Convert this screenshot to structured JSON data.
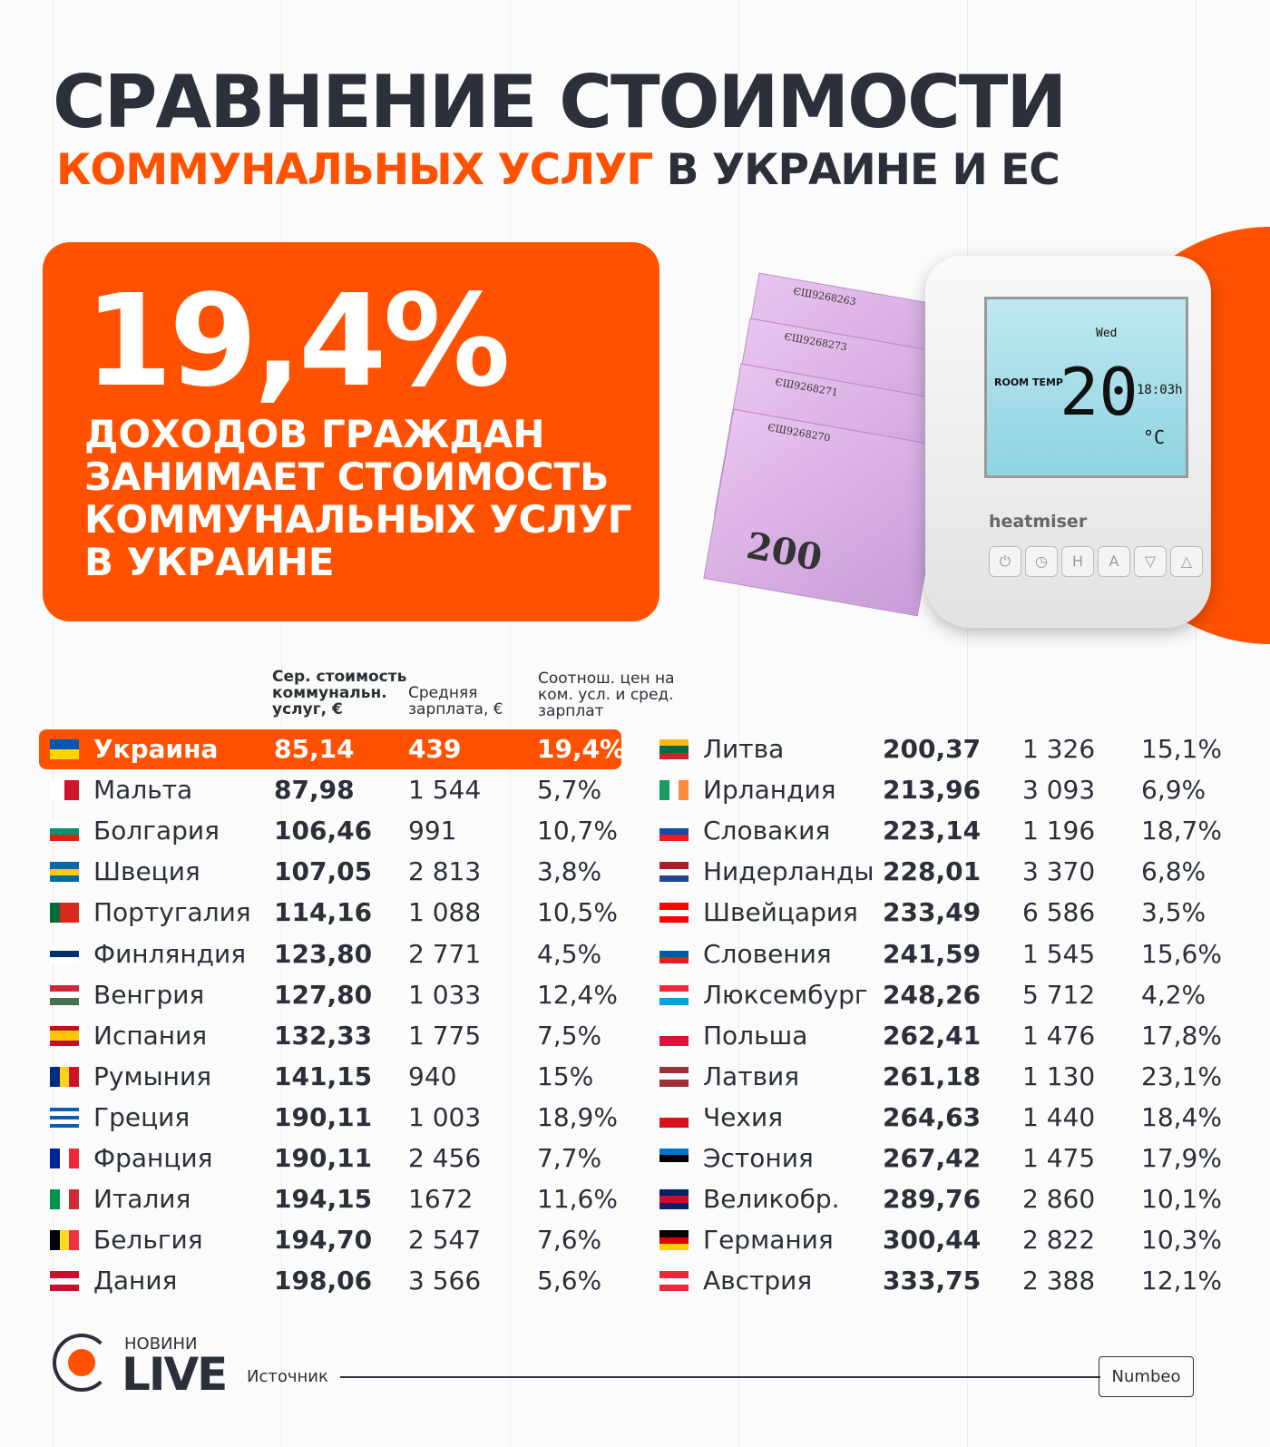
{
  "title": {
    "line1": "СРАВНЕНИЕ СТОИМОСТИ",
    "line2_accent": "КОММУНАЛЬНЫХ УСЛУГ",
    "line2_rest": " В УКРАИНЕ И ЕС"
  },
  "highlight": {
    "value": "19,4%",
    "text": "ДОХОДОВ ГРАЖДАН ЗАНИМАЕТ СТОИМОСТЬ КОММУНАЛЬНЫХ УСЛУГ В УКРАИНЕ"
  },
  "image": {
    "banknote_value": "200",
    "serials": [
      "ЄШ9268263",
      "ЄШ9268273",
      "ЄШ9268271",
      "ЄШ9268270"
    ],
    "thermostat": {
      "day": "Wed",
      "label": "ROOM TEMP",
      "temp": "20",
      "time": "18:03h",
      "unit": "°C",
      "brand": "heatmiser"
    }
  },
  "colors": {
    "accent": "#ff5100",
    "dark": "#2b303b"
  },
  "table": {
    "headers": {
      "cost": "Сер. стоимость коммунальн. услуг, €",
      "salary": "Средняя зарплата, €",
      "ratio": "Соотнош. цен на ком. усл. и сред. зарплат"
    },
    "left": [
      {
        "country": "Украина",
        "cost": "85,14",
        "salary": "439",
        "ratio": "19,4%",
        "flag": {
          "dir": "h",
          "colors": [
            "#0057b7",
            "#ffd700"
          ]
        }
      },
      {
        "country": "Мальта",
        "cost": "87,98",
        "salary": "1 544",
        "ratio": "5,7%",
        "flag": {
          "dir": "v",
          "colors": [
            "#ffffff",
            "#cf142b"
          ]
        }
      },
      {
        "country": "Болгария",
        "cost": "106,46",
        "salary": "991",
        "ratio": "10,7%",
        "flag": {
          "dir": "h",
          "colors": [
            "#ffffff",
            "#00966e",
            "#d62612"
          ]
        }
      },
      {
        "country": "Швеция",
        "cost": "107,05",
        "salary": "2 813",
        "ratio": "3,8%",
        "flag": {
          "dir": "h",
          "colors": [
            "#006aa7",
            "#fecc00",
            "#006aa7"
          ]
        }
      },
      {
        "country": "Португалия",
        "cost": "114,16",
        "salary": "1 088",
        "ratio": "10,5%",
        "flag": {
          "dir": "v",
          "colors": [
            "#046a38",
            "#da291c",
            "#da291c"
          ]
        }
      },
      {
        "country": "Финляндия",
        "cost": "123,80",
        "salary": "2 771",
        "ratio": "4,5%",
        "flag": {
          "dir": "h",
          "colors": [
            "#ffffff",
            "#002f6c",
            "#ffffff"
          ]
        }
      },
      {
        "country": "Венгрия",
        "cost": "127,80",
        "salary": "1 033",
        "ratio": "12,4%",
        "flag": {
          "dir": "h",
          "colors": [
            "#ce2939",
            "#ffffff",
            "#477050"
          ]
        }
      },
      {
        "country": "Испания",
        "cost": "132,33",
        "salary": "1 775",
        "ratio": "7,5%",
        "flag": {
          "dir": "h",
          "colors": [
            "#c60b1e",
            "#ffc400",
            "#ffc400",
            "#c60b1e"
          ]
        }
      },
      {
        "country": "Румыния",
        "cost": "141,15",
        "salary": "940",
        "ratio": "15%",
        "flag": {
          "dir": "v",
          "colors": [
            "#002b7f",
            "#fcd116",
            "#ce1126"
          ]
        }
      },
      {
        "country": "Греция",
        "cost": "190,11",
        "salary": "1 003",
        "ratio": "18,9%",
        "flag": {
          "dir": "h",
          "colors": [
            "#0d5eaf",
            "#ffffff",
            "#0d5eaf",
            "#ffffff",
            "#0d5eaf"
          ]
        }
      },
      {
        "country": "Франция",
        "cost": "190,11",
        "salary": "2 456",
        "ratio": "7,7%",
        "flag": {
          "dir": "v",
          "colors": [
            "#002395",
            "#ffffff",
            "#ed2939"
          ]
        }
      },
      {
        "country": "Италия",
        "cost": "194,15",
        "salary": "1672",
        "ratio": "11,6%",
        "flag": {
          "dir": "v",
          "colors": [
            "#009246",
            "#ffffff",
            "#ce2b37"
          ]
        }
      },
      {
        "country": "Бельгия",
        "cost": "194,70",
        "salary": "2 547",
        "ratio": "7,6%",
        "flag": {
          "dir": "v",
          "colors": [
            "#000000",
            "#fdda24",
            "#ef3340"
          ]
        }
      },
      {
        "country": "Дания",
        "cost": "198,06",
        "salary": "3 566",
        "ratio": "5,6%",
        "flag": {
          "dir": "h",
          "colors": [
            "#c8102e",
            "#ffffff",
            "#c8102e"
          ]
        }
      }
    ],
    "right": [
      {
        "country": "Литва",
        "cost": "200,37",
        "salary": "1 326",
        "ratio": "15,1%",
        "flag": {
          "dir": "h",
          "colors": [
            "#fdb913",
            "#006a44",
            "#c1272d"
          ]
        }
      },
      {
        "country": "Ирландия",
        "cost": "213,96",
        "salary": "3 093",
        "ratio": "6,9%",
        "flag": {
          "dir": "v",
          "colors": [
            "#169b62",
            "#ffffff",
            "#ff883e"
          ]
        }
      },
      {
        "country": "Словакия",
        "cost": "223,14",
        "salary": "1 196",
        "ratio": "18,7%",
        "flag": {
          "dir": "h",
          "colors": [
            "#ffffff",
            "#0b4ea2",
            "#ee1c25"
          ]
        }
      },
      {
        "country": "Нидерланды",
        "cost": "228,01",
        "salary": "3 370",
        "ratio": "6,8%",
        "flag": {
          "dir": "h",
          "colors": [
            "#ae1c28",
            "#ffffff",
            "#21468b"
          ]
        }
      },
      {
        "country": "Швейцария",
        "cost": "233,49",
        "salary": "6 586",
        "ratio": "3,5%",
        "flag": {
          "dir": "h",
          "colors": [
            "#ff0000",
            "#ffffff",
            "#ff0000"
          ]
        }
      },
      {
        "country": "Словения",
        "cost": "241,59",
        "salary": "1 545",
        "ratio": "15,6%",
        "flag": {
          "dir": "h",
          "colors": [
            "#ffffff",
            "#005da4",
            "#ed1c24"
          ]
        }
      },
      {
        "country": "Люксембург",
        "cost": "248,26",
        "salary": "5 712",
        "ratio": "4,2%",
        "flag": {
          "dir": "h",
          "colors": [
            "#ed2939",
            "#ffffff",
            "#00a1de"
          ]
        }
      },
      {
        "country": "Польша",
        "cost": "262,41",
        "salary": "1 476",
        "ratio": "17,8%",
        "flag": {
          "dir": "h",
          "colors": [
            "#ffffff",
            "#dc143c"
          ]
        }
      },
      {
        "country": "Латвия",
        "cost": "261,18",
        "salary": "1 130",
        "ratio": "23,1%",
        "flag": {
          "dir": "h",
          "colors": [
            "#9e3039",
            "#ffffff",
            "#9e3039"
          ]
        }
      },
      {
        "country": "Чехия",
        "cost": "264,63",
        "salary": "1 440",
        "ratio": "18,4%",
        "flag": {
          "dir": "h",
          "colors": [
            "#ffffff",
            "#d7141a"
          ]
        }
      },
      {
        "country": "Эстония",
        "cost": "267,42",
        "salary": "1 475",
        "ratio": "17,9%",
        "flag": {
          "dir": "h",
          "colors": [
            "#0072ce",
            "#000000",
            "#ffffff"
          ]
        }
      },
      {
        "country": "Великобр.",
        "cost": "289,76",
        "salary": "2 860",
        "ratio": "10,1%",
        "flag": {
          "dir": "h",
          "colors": [
            "#012169",
            "#c8102e",
            "#012169"
          ]
        }
      },
      {
        "country": "Германия",
        "cost": "300,44",
        "salary": "2 822",
        "ratio": "10,3%",
        "flag": {
          "dir": "h",
          "colors": [
            "#000000",
            "#dd0000",
            "#ffce00"
          ]
        }
      },
      {
        "country": "Австрия",
        "cost": "333,75",
        "salary": "2 388",
        "ratio": "12,1%",
        "flag": {
          "dir": "h",
          "colors": [
            "#ed2939",
            "#ffffff",
            "#ed2939"
          ]
        }
      }
    ]
  },
  "footer": {
    "logo_top": "НОВИНИ",
    "logo_main": "LIVE",
    "source_label": "Источник",
    "source": "Numbeo"
  }
}
